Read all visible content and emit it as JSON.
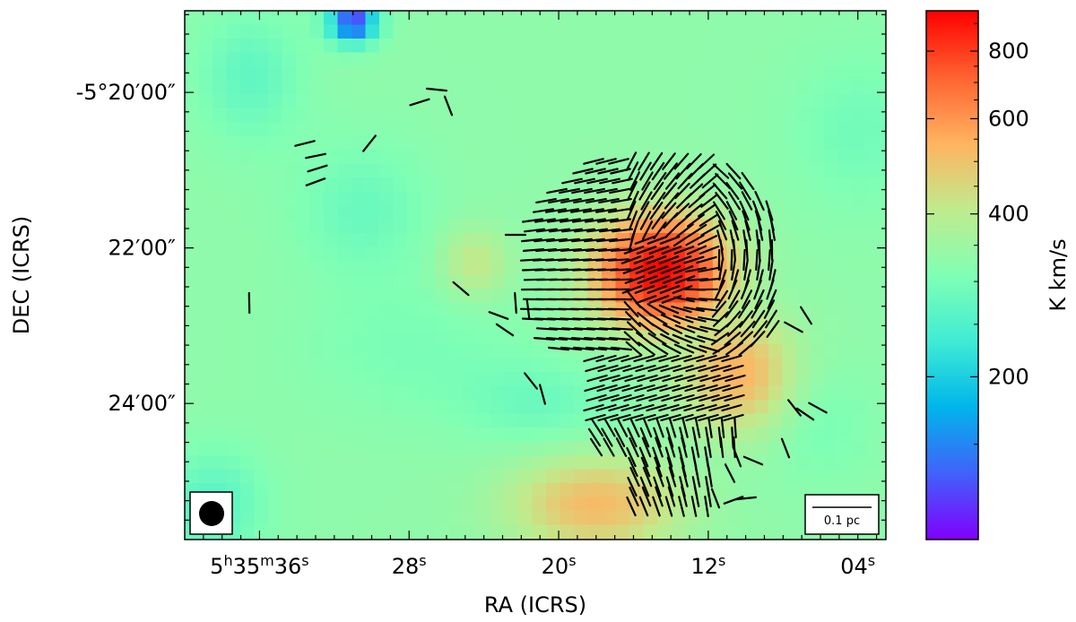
{
  "chart_data": {
    "type": "heatmap",
    "title": "",
    "xlabel": "RA (ICRS)",
    "ylabel": "DEC (ICRS)",
    "colorbar_label": "K km/s",
    "colormap": "rainbow",
    "color_range": [
      100,
      950
    ],
    "colorbar_scale": "log",
    "colorbar_ticks": [
      200,
      400,
      600,
      800
    ],
    "x_ticks": [
      {
        "ra_s": 36,
        "h": "5",
        "m": "35",
        "s": "36"
      },
      {
        "ra_s": 28,
        "s": "28"
      },
      {
        "ra_s": 20,
        "s": "20"
      },
      {
        "ra_s": 12,
        "s": "12"
      },
      {
        "ra_s": 4,
        "s": "04"
      }
    ],
    "x_range_ra_s": [
      40.0,
      2.5
    ],
    "y_ticks": [
      {
        "dec_arcmin": 20,
        "label": "-5°20′00″"
      },
      {
        "dec_arcmin": 22,
        "label": "22′00″"
      },
      {
        "dec_arcmin": 24,
        "label": "24′00″"
      }
    ],
    "y_range_dec_arcmin": [
      18.95,
      25.75
    ],
    "scale_bar_label": "0.1 pc",
    "beam": "filled-circle",
    "intensity_peaks_dec_arcmin": [
      {
        "ra_s": 14.5,
        "dec": 22.3,
        "value": 950,
        "sigma_ra": 2.2,
        "sigma_dec": 0.45
      },
      {
        "ra_s": 10.5,
        "dec": 23.6,
        "value": 540,
        "sigma_ra": 2.0,
        "sigma_dec": 0.5
      },
      {
        "ra_s": 18.0,
        "dec": 25.3,
        "value": 520,
        "sigma_ra": 3.0,
        "sigma_dec": 0.4
      },
      {
        "ra_s": 31.0,
        "dec": 19.1,
        "value": 110,
        "sigma_ra": 1.0,
        "sigma_dec": 0.2
      }
    ]
  }
}
